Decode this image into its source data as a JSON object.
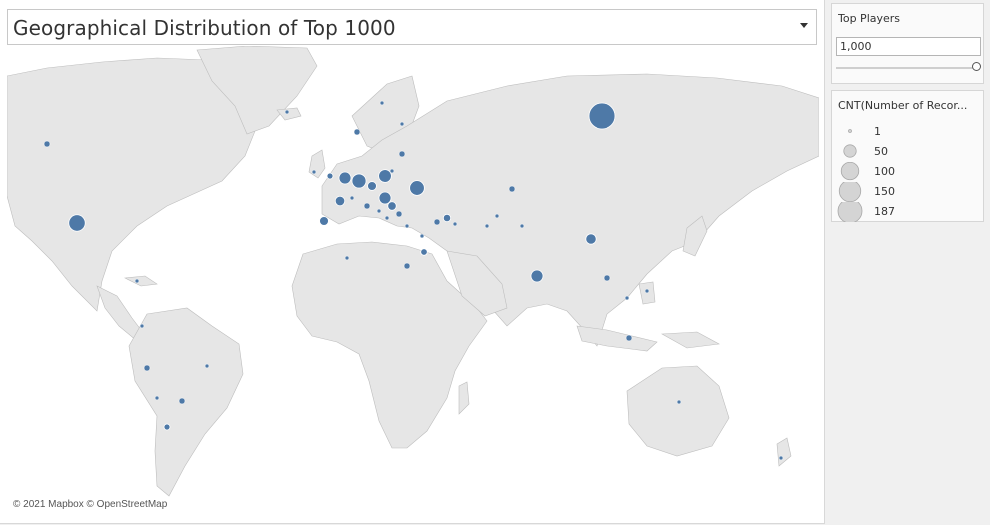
{
  "title": "Geographical Distribution of Top 1000",
  "attribution": "© 2021 Mapbox © OpenStreetMap",
  "filter": {
    "label": "Top Players",
    "value": "1,000"
  },
  "legend": {
    "title": "CNT(Number of Recor...",
    "entries": [
      {
        "label": "1",
        "value": 1
      },
      {
        "label": "50",
        "value": 50
      },
      {
        "label": "100",
        "value": 100
      },
      {
        "label": "150",
        "value": 150
      },
      {
        "label": "187",
        "value": 187
      }
    ]
  },
  "colors": {
    "marker": "#4e79a7",
    "land": "#e6e6e6",
    "border": "#bdbdbd",
    "legend_marker": "#d4d4d4"
  },
  "markers": [
    {
      "region": "Russia",
      "count": 187
    },
    {
      "region": "United States",
      "count": 75
    },
    {
      "region": "Ukraine",
      "count": 60
    },
    {
      "region": "Germany",
      "count": 55
    },
    {
      "region": "Poland",
      "count": 45
    },
    {
      "region": "Netherlands",
      "count": 40
    },
    {
      "region": "Hungary",
      "count": 40
    },
    {
      "region": "India",
      "count": 40
    },
    {
      "region": "China",
      "count": 30
    },
    {
      "region": "France",
      "count": 25
    },
    {
      "region": "Spain",
      "count": 22
    },
    {
      "region": "Czech Republic",
      "count": 22
    },
    {
      "region": "Serbia",
      "count": 20
    },
    {
      "region": "Turkey",
      "count": 15
    },
    {
      "region": "Egypt",
      "count": 12
    },
    {
      "region": "Argentina",
      "count": 10
    },
    {
      "region": "United Kingdom",
      "count": 10
    }
  ]
}
